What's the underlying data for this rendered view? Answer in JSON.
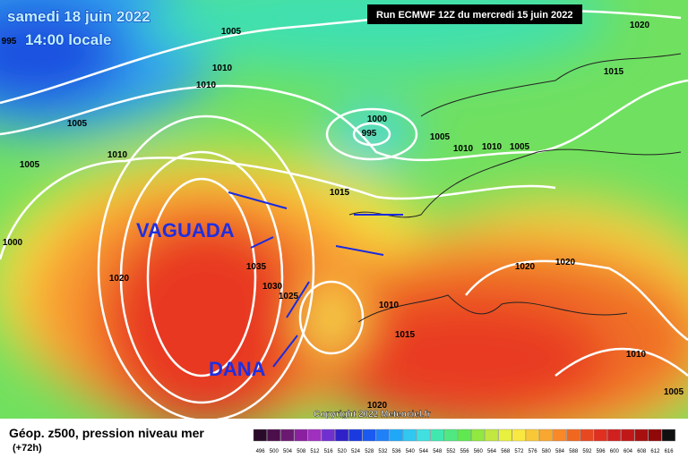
{
  "header": {
    "date": "samedi 18 juin 2022",
    "time": "14:00 locale",
    "run": "Run ECMWF 12Z du mercredi 15 juin 2022"
  },
  "annotations": {
    "trough": "VAGUADA",
    "cutoff_low": "DANA"
  },
  "isobar_labels": [
    "1005",
    "1010",
    "1010",
    "1005",
    "1010",
    "1005",
    "1000",
    "1020",
    "1000",
    "995",
    "1005",
    "1010",
    "1010",
    "1005",
    "1015",
    "1015",
    "1035",
    "1030",
    "1025",
    "1010",
    "1015",
    "1020",
    "1020",
    "1010",
    "1005",
    "1020",
    "1020",
    "995"
  ],
  "copyright": "Copyright 2022 Meteociel.fr",
  "footer": {
    "title": "Géop. z500, pression niveau mer",
    "lead": "(+72h)"
  },
  "scale": {
    "labels": [
      "496",
      "500",
      "504",
      "508",
      "512",
      "516",
      "520",
      "524",
      "528",
      "532",
      "536",
      "540",
      "544",
      "548",
      "552",
      "556",
      "560",
      "564",
      "568",
      "572",
      "576",
      "580",
      "584",
      "588",
      "592",
      "596",
      "600",
      "604",
      "608",
      "612",
      "616"
    ],
    "colors": [
      "#2a0a2a",
      "#4b0f4b",
      "#6a1a70",
      "#8a20a0",
      "#a030c0",
      "#7030d0",
      "#3020c8",
      "#1a3ae0",
      "#1a5af0",
      "#2080f8",
      "#20a8f8",
      "#30c8f0",
      "#40e0e0",
      "#40e8b0",
      "#50e880",
      "#60e850",
      "#90e840",
      "#c0e840",
      "#e8f040",
      "#f8e840",
      "#f8c838",
      "#f8a830",
      "#f88828",
      "#f06820",
      "#e84820",
      "#e03020",
      "#d02020",
      "#c01818",
      "#a81010",
      "#900808",
      "#101010"
    ]
  }
}
